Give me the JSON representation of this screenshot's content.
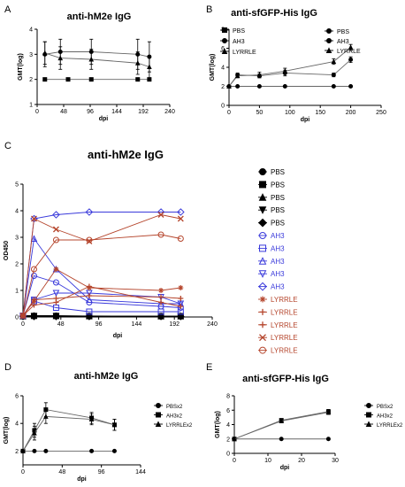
{
  "chart_data": [
    {
      "panel": "A",
      "type": "line",
      "title": "anti-hM2e IgG",
      "xlabel": "dpi",
      "ylabel": "GMT(log)",
      "xlim": [
        0,
        240
      ],
      "ylim": [
        1,
        4
      ],
      "xticks": [
        0,
        48,
        96,
        144,
        192,
        240
      ],
      "yticks": [
        1,
        2,
        3,
        4
      ],
      "legend_position": "right",
      "series": [
        {
          "name": "PBS",
          "marker": "square",
          "x": [
            14,
            56,
            98,
            182,
            203
          ],
          "y": [
            2,
            2,
            2,
            2,
            2
          ],
          "err": [
            0,
            0,
            0,
            0,
            0
          ]
        },
        {
          "name": "AH3",
          "marker": "dot",
          "x": [
            14,
            42,
            98,
            182,
            203
          ],
          "y": [
            3.0,
            3.1,
            3.1,
            3.0,
            2.9
          ],
          "err": [
            0.5,
            0.5,
            0.5,
            0.6,
            0.6
          ]
        },
        {
          "name": "LYRRLE",
          "marker": "triangle",
          "x": [
            14,
            42,
            98,
            182,
            203
          ],
          "y": [
            3.05,
            2.85,
            2.8,
            2.65,
            2.5
          ],
          "err": [
            0.45,
            0.45,
            0.4,
            0.45,
            0.45
          ]
        }
      ]
    },
    {
      "panel": "B",
      "type": "line",
      "title": "anti-sfGFP-His IgG",
      "xlabel": "dpi",
      "ylabel": "GMT(log)",
      "xlim": [
        0,
        250
      ],
      "ylim": [
        0,
        8
      ],
      "xticks": [
        0,
        50,
        100,
        150,
        200,
        250
      ],
      "yticks": [
        0,
        2,
        4,
        6,
        8
      ],
      "legend_position": "right",
      "series": [
        {
          "name": "PBS",
          "marker": "dot",
          "x": [
            0,
            14,
            50,
            92,
            172,
            200
          ],
          "y": [
            2,
            2,
            2,
            2,
            2,
            2
          ],
          "err": [
            0,
            0,
            0,
            0,
            0,
            0
          ]
        },
        {
          "name": "AH3",
          "marker": "dot",
          "x": [
            0,
            14,
            50,
            92,
            172,
            200
          ],
          "y": [
            2,
            3.2,
            3.1,
            3.4,
            3.2,
            4.8
          ],
          "err": [
            0,
            0.2,
            0.2,
            0.3,
            0.2,
            0.3
          ]
        },
        {
          "name": "LYRRLE",
          "marker": "triangle",
          "x": [
            0,
            14,
            50,
            92,
            172,
            200
          ],
          "y": [
            2,
            3.1,
            3.2,
            3.6,
            4.6,
            6.1
          ],
          "err": [
            0,
            0.2,
            0.3,
            0.3,
            0.3,
            0.3
          ]
        }
      ]
    },
    {
      "panel": "C",
      "type": "line",
      "title": "anti-hM2e IgG",
      "xlabel": "dpi",
      "ylabel": "OD450",
      "xlim": [
        0,
        240
      ],
      "ylim": [
        0,
        5
      ],
      "xticks": [
        0,
        48,
        96,
        144,
        192,
        240
      ],
      "yticks": [
        0,
        1,
        2,
        3,
        4,
        5
      ],
      "legend_position": "right",
      "x": [
        0,
        14,
        42,
        84,
        175,
        200
      ],
      "series": [
        {
          "name": "PBS",
          "group": "PBS",
          "marker": "dot",
          "y": [
            0.05,
            0.05,
            0.05,
            0.03,
            0.03,
            0.03
          ]
        },
        {
          "name": "PBS",
          "group": "PBS",
          "marker": "square",
          "y": [
            0.04,
            0.04,
            0.04,
            0.03,
            0.03,
            0.03
          ]
        },
        {
          "name": "PBS",
          "group": "PBS",
          "marker": "triangle",
          "y": [
            0.03,
            0.05,
            0.04,
            0.04,
            0.03,
            0.03
          ]
        },
        {
          "name": "PBS",
          "group": "PBS",
          "marker": "triangle-down",
          "y": [
            0.02,
            0.03,
            0.03,
            0.02,
            0.02,
            0.02
          ]
        },
        {
          "name": "PBS",
          "group": "PBS",
          "marker": "diamond",
          "y": [
            0.02,
            0.02,
            0.02,
            0.02,
            0.02,
            0.02
          ]
        },
        {
          "name": "AH3",
          "group": "AH3",
          "marker": "circle-open",
          "y": [
            0.05,
            1.55,
            1.3,
            0.55,
            0.4,
            0.35
          ]
        },
        {
          "name": "AH3",
          "group": "AH3",
          "marker": "square-open",
          "y": [
            0.05,
            0.6,
            0.35,
            0.2,
            0.2,
            0.2
          ]
        },
        {
          "name": "AH3",
          "group": "AH3",
          "marker": "triangle-open",
          "y": [
            0.05,
            2.95,
            1.8,
            0.65,
            0.5,
            0.5
          ]
        },
        {
          "name": "AH3",
          "group": "AH3",
          "marker": "triangle-down-open",
          "y": [
            0.05,
            0.65,
            0.9,
            0.9,
            0.75,
            0.5
          ]
        },
        {
          "name": "AH3",
          "group": "AH3",
          "marker": "diamond-open",
          "y": [
            0.05,
            3.7,
            3.85,
            3.95,
            3.95,
            3.95
          ]
        },
        {
          "name": "LYRRLE",
          "group": "LYRRLE",
          "marker": "star",
          "y": [
            0.05,
            0.6,
            1.8,
            1.1,
            1.0,
            1.1
          ]
        },
        {
          "name": "LYRRLE",
          "group": "LYRRLE",
          "marker": "plus",
          "y": [
            0.05,
            0.65,
            0.7,
            0.8,
            0.75,
            0.7
          ]
        },
        {
          "name": "LYRRLE",
          "group": "LYRRLE",
          "marker": "plus",
          "y": [
            0.05,
            0.45,
            0.55,
            1.15,
            0.55,
            0.4
          ]
        },
        {
          "name": "LYRRLE",
          "group": "LYRRLE",
          "marker": "x",
          "y": [
            0.05,
            3.7,
            3.3,
            2.85,
            3.85,
            3.7
          ]
        },
        {
          "name": "LYRRLE",
          "group": "LYRRLE",
          "marker": "circle-open",
          "y": [
            0.05,
            1.8,
            2.9,
            2.9,
            3.1,
            2.95
          ]
        }
      ]
    },
    {
      "panel": "D",
      "type": "line",
      "title": "anti-hM2e IgG",
      "xlabel": "dpi",
      "ylabel": "GMT(log)",
      "xlim": [
        0,
        144
      ],
      "ylim": [
        1,
        6
      ],
      "xticks": [
        0,
        48,
        96,
        144
      ],
      "yticks": [
        2,
        4,
        6
      ],
      "legend_position": "right",
      "series": [
        {
          "name": "PBSx2",
          "marker": "dot",
          "x": [
            0,
            14,
            28,
            84,
            112
          ],
          "y": [
            2,
            2,
            2,
            2,
            2
          ],
          "err": [
            0,
            0,
            0,
            0,
            0
          ]
        },
        {
          "name": "AH3x2",
          "marker": "square",
          "x": [
            0,
            14,
            28,
            84,
            112
          ],
          "y": [
            2,
            3.5,
            5.0,
            4.4,
            3.9
          ],
          "err": [
            0,
            0.5,
            0.5,
            0.4,
            0.4
          ]
        },
        {
          "name": "LYRRLEx2",
          "marker": "triangle",
          "x": [
            0,
            14,
            28,
            84,
            112
          ],
          "y": [
            2,
            3.3,
            4.5,
            4.3,
            3.9
          ],
          "err": [
            0,
            0.5,
            0.5,
            0.4,
            0.4
          ]
        }
      ]
    },
    {
      "panel": "E",
      "type": "line",
      "title": "anti-sfGFP-His IgG",
      "xlabel": "dpi",
      "ylabel": "GMT(log)",
      "xlim": [
        0,
        30
      ],
      "ylim": [
        0,
        8
      ],
      "xticks": [
        0,
        10,
        20,
        30
      ],
      "yticks": [
        0,
        2,
        4,
        6,
        8
      ],
      "legend_position": "right",
      "series": [
        {
          "name": "PBSx2",
          "marker": "dot",
          "x": [
            0,
            14,
            28
          ],
          "y": [
            2,
            2,
            2
          ],
          "err": [
            0,
            0,
            0
          ]
        },
        {
          "name": "AH3x2",
          "marker": "square",
          "x": [
            0,
            14,
            28
          ],
          "y": [
            2,
            4.6,
            5.8
          ],
          "err": [
            0,
            0.2,
            0.3
          ]
        },
        {
          "name": "LYRRLEx2",
          "marker": "triangle",
          "x": [
            0,
            14,
            28
          ],
          "y": [
            2,
            4.5,
            5.7
          ],
          "err": [
            0,
            0.2,
            0.3
          ]
        }
      ]
    }
  ],
  "colors": {
    "PBS": "#000000",
    "AH3": "#3a3adb",
    "LYRRLE": "#b5452c",
    "black": "#000000",
    "grey": "#666666"
  }
}
